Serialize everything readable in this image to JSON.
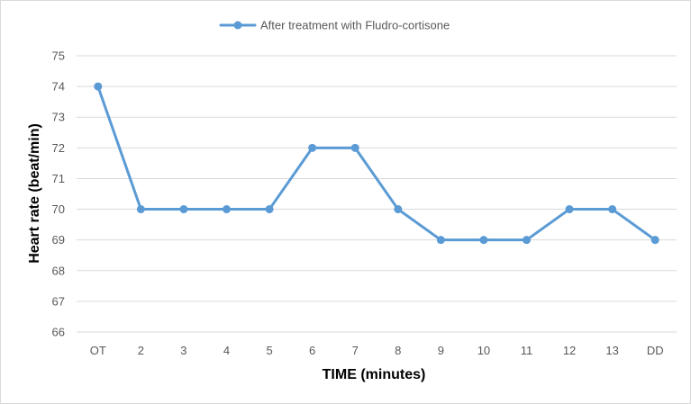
{
  "chart_data": {
    "type": "line",
    "categories": [
      "OT",
      "2",
      "3",
      "4",
      "5",
      "6",
      "7",
      "8",
      "9",
      "10",
      "11",
      "12",
      "13",
      "DD"
    ],
    "series": [
      {
        "name": "After treatment with Fludro-cortisone",
        "values": [
          74,
          70,
          70,
          70,
          70,
          72,
          72,
          70,
          69,
          69,
          69,
          70,
          70,
          69
        ],
        "color": "#5b9bd5"
      }
    ],
    "xlabel": "TIME (minutes)",
    "ylabel": "Heart rate (beat/min)",
    "ylim": [
      66,
      75
    ],
    "yticks": [
      "66",
      "67",
      "68",
      "69",
      "70",
      "71",
      "72",
      "73",
      "74",
      "75"
    ],
    "grid": true,
    "legend_position": "top-center"
  }
}
